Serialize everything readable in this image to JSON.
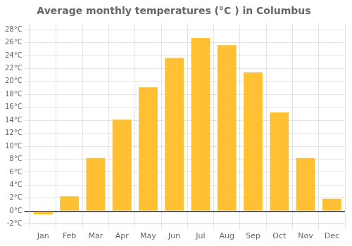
{
  "chart_data": {
    "type": "bar",
    "title": "Average monthly temperatures (°C ) in Columbus",
    "categories": [
      "Jan",
      "Feb",
      "Mar",
      "Apr",
      "May",
      "Jun",
      "Jul",
      "Aug",
      "Sep",
      "Oct",
      "Nov",
      "Dec"
    ],
    "values": [
      -0.5,
      2.3,
      8.2,
      14.1,
      19.1,
      23.6,
      26.7,
      25.6,
      21.4,
      15.2,
      8.2,
      1.9
    ],
    "color": "#FFC034",
    "ylim": [
      -2,
      29
    ],
    "yticks": [
      {
        "value": -2,
        "label": "-2°C"
      },
      {
        "value": 0,
        "label": "0°C"
      },
      {
        "value": 2,
        "label": "2°C"
      },
      {
        "value": 4,
        "label": "4°C"
      },
      {
        "value": 6,
        "label": "6°C"
      },
      {
        "value": 8,
        "label": "8°C"
      },
      {
        "value": 10,
        "label": "10°C"
      },
      {
        "value": 12,
        "label": "12°C"
      },
      {
        "value": 14,
        "label": "14°C"
      },
      {
        "value": 16,
        "label": "16°C"
      },
      {
        "value": 18,
        "label": "18°C"
      },
      {
        "value": 20,
        "label": "20°C"
      },
      {
        "value": 22,
        "label": "22°C"
      },
      {
        "value": 24,
        "label": "24°C"
      },
      {
        "value": 26,
        "label": "26°C"
      },
      {
        "value": 28,
        "label": "28°C"
      }
    ],
    "grid": true
  }
}
